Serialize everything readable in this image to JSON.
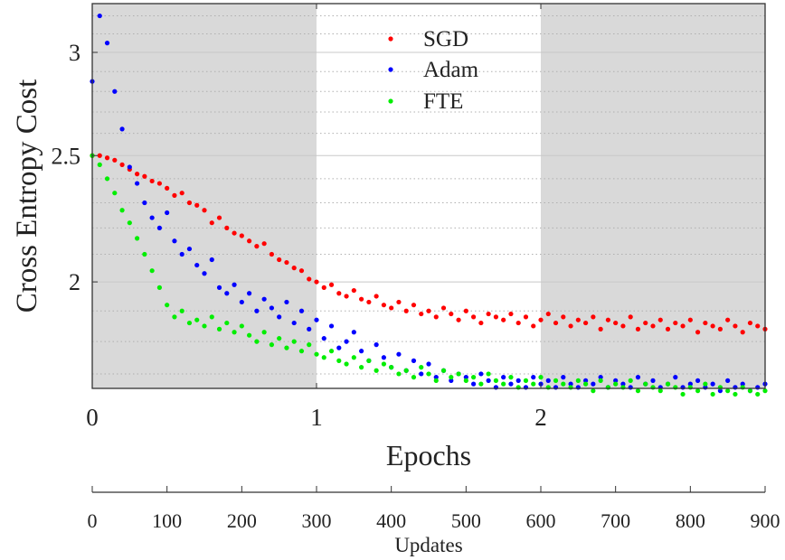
{
  "chart_data": {
    "type": "scatter",
    "title": "",
    "xlabel": "Epochs",
    "x2label": "Updates",
    "ylabel": "Cross Entropy Cost",
    "yscale": "log",
    "ylim": [
      1.657,
      3.27
    ],
    "xlim_updates": [
      0,
      900
    ],
    "xlim_epochs": [
      0,
      3
    ],
    "updates_per_epoch": 300,
    "x_ticks": [
      "0",
      "1",
      "2"
    ],
    "x_tick_values": [
      0,
      1,
      2
    ],
    "x2_ticks": [
      "0",
      "100",
      "200",
      "300",
      "400",
      "500",
      "600",
      "700",
      "800",
      "900"
    ],
    "x2_tick_values": [
      0,
      100,
      200,
      300,
      400,
      500,
      600,
      700,
      800,
      900
    ],
    "y_ticks": [
      "2",
      "2.5",
      "3"
    ],
    "y_tick_values": [
      2,
      2.5,
      3
    ],
    "y_minor_ticks": [
      1.7,
      1.8,
      1.9,
      2.1,
      2.2,
      2.3,
      2.4,
      2.6,
      2.7,
      2.8,
      2.9,
      3.1,
      3.2
    ],
    "shaded_epochs": [
      [
        0,
        1
      ],
      [
        2,
        3
      ]
    ],
    "grid": true,
    "legend_position": "top-center",
    "colors": {
      "shade": "#d9d9d9",
      "grid": "#c8c8c8"
    },
    "x": [
      0,
      10,
      20,
      30,
      40,
      50,
      60,
      70,
      80,
      90,
      100,
      110,
      120,
      130,
      140,
      150,
      160,
      170,
      180,
      190,
      200,
      210,
      220,
      230,
      240,
      250,
      260,
      270,
      280,
      290,
      300,
      310,
      320,
      330,
      340,
      350,
      360,
      370,
      380,
      390,
      400,
      410,
      420,
      430,
      440,
      450,
      460,
      470,
      480,
      490,
      500,
      510,
      520,
      530,
      540,
      550,
      560,
      570,
      580,
      590,
      600,
      610,
      620,
      630,
      640,
      650,
      660,
      670,
      680,
      690,
      700,
      710,
      720,
      730,
      740,
      750,
      760,
      770,
      780,
      790,
      800,
      810,
      820,
      830,
      840,
      850,
      860,
      870,
      880,
      890,
      900
    ],
    "series": [
      {
        "name": "SGD",
        "color": "#ff0000",
        "values": [
          2.5,
          2.5,
          2.49,
          2.48,
          2.46,
          2.44,
          2.42,
          2.41,
          2.39,
          2.38,
          2.36,
          2.33,
          2.34,
          2.3,
          2.29,
          2.27,
          2.22,
          2.24,
          2.2,
          2.18,
          2.17,
          2.15,
          2.13,
          2.14,
          2.1,
          2.08,
          2.07,
          2.05,
          2.04,
          2.01,
          2.0,
          1.98,
          1.99,
          1.96,
          1.95,
          1.97,
          1.94,
          1.93,
          1.95,
          1.92,
          1.91,
          1.93,
          1.9,
          1.92,
          1.89,
          1.9,
          1.88,
          1.91,
          1.89,
          1.87,
          1.9,
          1.88,
          1.86,
          1.89,
          1.88,
          1.87,
          1.89,
          1.86,
          1.88,
          1.85,
          1.87,
          1.89,
          1.86,
          1.88,
          1.85,
          1.87,
          1.86,
          1.88,
          1.84,
          1.87,
          1.86,
          1.85,
          1.88,
          1.84,
          1.86,
          1.85,
          1.87,
          1.84,
          1.86,
          1.85,
          1.87,
          1.83,
          1.86,
          1.85,
          1.84,
          1.87,
          1.85,
          1.83,
          1.86,
          1.85,
          1.84
        ]
      },
      {
        "name": "Adam",
        "color": "#0000ff",
        "values": [
          2.85,
          3.2,
          3.05,
          2.8,
          2.62,
          2.45,
          2.38,
          2.3,
          2.24,
          2.2,
          2.26,
          2.15,
          2.1,
          2.12,
          2.06,
          2.03,
          2.08,
          1.98,
          1.96,
          1.99,
          1.93,
          1.96,
          1.9,
          1.94,
          1.91,
          1.88,
          1.93,
          1.86,
          1.9,
          1.84,
          1.87,
          1.81,
          1.85,
          1.78,
          1.8,
          1.83,
          1.77,
          1.74,
          1.79,
          1.75,
          1.72,
          1.76,
          1.71,
          1.74,
          1.7,
          1.73,
          1.69,
          1.71,
          1.68,
          1.7,
          1.69,
          1.67,
          1.7,
          1.68,
          1.66,
          1.69,
          1.67,
          1.68,
          1.66,
          1.69,
          1.67,
          1.68,
          1.66,
          1.69,
          1.67,
          1.66,
          1.68,
          1.67,
          1.69,
          1.66,
          1.68,
          1.67,
          1.66,
          1.69,
          1.67,
          1.68,
          1.66,
          1.67,
          1.69,
          1.66,
          1.67,
          1.68,
          1.66,
          1.67,
          1.65,
          1.68,
          1.66,
          1.67,
          1.65,
          1.66,
          1.67
        ]
      },
      {
        "name": "FTE",
        "color": "#00ee00",
        "values": [
          2.5,
          2.46,
          2.4,
          2.34,
          2.27,
          2.22,
          2.16,
          2.1,
          2.04,
          1.98,
          1.92,
          1.88,
          1.9,
          1.86,
          1.87,
          1.85,
          1.88,
          1.84,
          1.86,
          1.83,
          1.85,
          1.82,
          1.8,
          1.83,
          1.79,
          1.81,
          1.78,
          1.8,
          1.77,
          1.79,
          1.76,
          1.75,
          1.77,
          1.74,
          1.73,
          1.75,
          1.72,
          1.74,
          1.71,
          1.73,
          1.72,
          1.7,
          1.71,
          1.69,
          1.72,
          1.7,
          1.68,
          1.71,
          1.69,
          1.7,
          1.68,
          1.69,
          1.67,
          1.7,
          1.68,
          1.67,
          1.69,
          1.66,
          1.68,
          1.67,
          1.69,
          1.66,
          1.68,
          1.67,
          1.66,
          1.68,
          1.67,
          1.65,
          1.68,
          1.66,
          1.67,
          1.66,
          1.68,
          1.65,
          1.67,
          1.66,
          1.65,
          1.67,
          1.66,
          1.64,
          1.66,
          1.65,
          1.67,
          1.64,
          1.66,
          1.65,
          1.64,
          1.66,
          1.65,
          1.64,
          1.65
        ]
      }
    ]
  }
}
